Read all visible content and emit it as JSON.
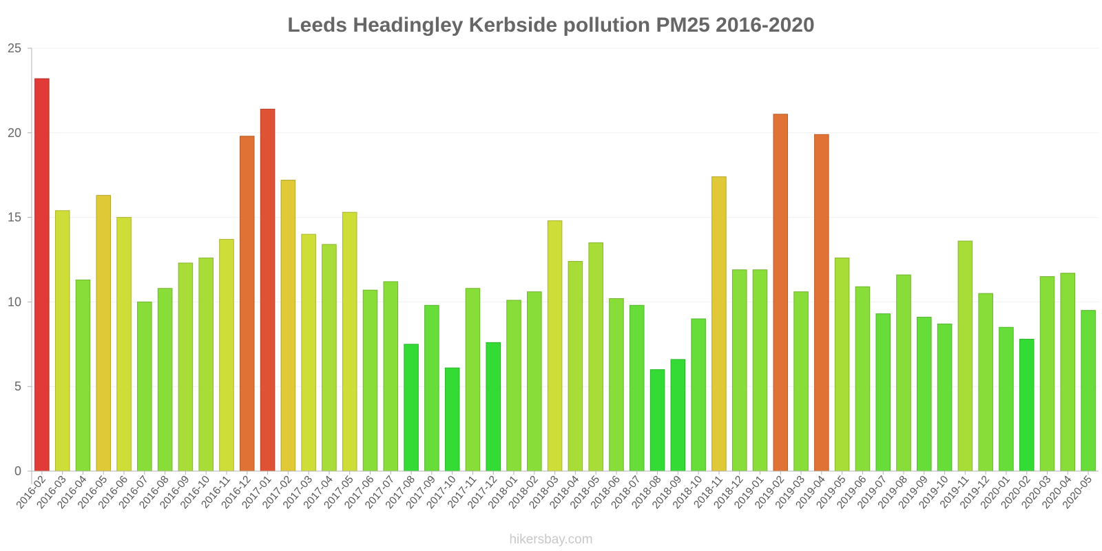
{
  "footer": "hikersbay.com",
  "chart_data": {
    "type": "bar",
    "title": "Leeds Headingley Kerbside pollution PM25 2016-2020",
    "xlabel": "",
    "ylabel": "",
    "ylim": [
      0,
      25
    ],
    "yticks": [
      0,
      5,
      10,
      15,
      20,
      25
    ],
    "grid": true,
    "categories": [
      "2016-02",
      "2016-03",
      "2016-04",
      "2016-05",
      "2016-06",
      "2016-07",
      "2016-08",
      "2016-09",
      "2016-10",
      "2016-11",
      "2016-12",
      "2017-01",
      "2017-02",
      "2017-03",
      "2017-04",
      "2017-05",
      "2017-06",
      "2017-07",
      "2017-08",
      "2017-09",
      "2017-10",
      "2017-11",
      "2017-12",
      "2018-01",
      "2018-02",
      "2018-03",
      "2018-04",
      "2018-05",
      "2018-06",
      "2018-07",
      "2018-08",
      "2018-09",
      "2018-10",
      "2018-11",
      "2018-12",
      "2019-01",
      "2019-02",
      "2019-03",
      "2019-04",
      "2019-05",
      "2019-06",
      "2019-07",
      "2019-08",
      "2019-09",
      "2019-10",
      "2019-11",
      "2019-12",
      "2020-01",
      "2020-02",
      "2020-03",
      "2020-04",
      "2020-05"
    ],
    "values": [
      23.2,
      15.4,
      11.3,
      16.3,
      15.0,
      10.0,
      10.8,
      12.3,
      12.6,
      13.7,
      19.8,
      21.4,
      17.2,
      14.0,
      13.4,
      15.3,
      10.7,
      11.2,
      7.5,
      9.8,
      6.1,
      10.8,
      7.6,
      10.1,
      10.6,
      14.8,
      12.4,
      13.5,
      10.2,
      9.8,
      6.0,
      6.6,
      9.0,
      17.4,
      11.9,
      11.9,
      21.1,
      10.6,
      19.9,
      12.6,
      10.9,
      9.3,
      11.6,
      9.1,
      8.7,
      13.6,
      10.5,
      8.5,
      7.8,
      11.5,
      11.7,
      9.5
    ],
    "colors": [
      "#e03b36",
      "#cfdd38",
      "#88dd38",
      "#dfc936",
      "#cfdd38",
      "#88dd38",
      "#88dd38",
      "#a8dd38",
      "#a8dd38",
      "#cfdd38",
      "#df7234",
      "#e05234",
      "#dfc936",
      "#cfdd38",
      "#a8dd38",
      "#cfdd38",
      "#88dd38",
      "#88dd38",
      "#34db34",
      "#66dd38",
      "#34db34",
      "#88dd38",
      "#34db34",
      "#88dd38",
      "#88dd38",
      "#cfdd38",
      "#a8dd38",
      "#a8dd38",
      "#88dd38",
      "#66dd38",
      "#34db34",
      "#34db34",
      "#66dd38",
      "#dfc936",
      "#88dd38",
      "#88dd38",
      "#df7234",
      "#88dd38",
      "#df7234",
      "#a8dd38",
      "#88dd38",
      "#66dd38",
      "#88dd38",
      "#66dd38",
      "#66dd38",
      "#a8dd38",
      "#88dd38",
      "#66dd38",
      "#34db34",
      "#88dd38",
      "#88dd38",
      "#66dd38"
    ]
  }
}
